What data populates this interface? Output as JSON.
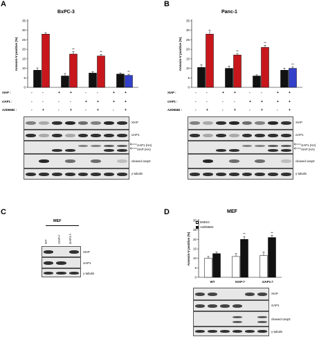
{
  "colors": {
    "black": "#111111",
    "red": "#c8171c",
    "blue": "#3340c9",
    "white": "#ffffff"
  },
  "panels": {
    "A": {
      "letter": "A",
      "title": "BxPC-3"
    },
    "B": {
      "letter": "B",
      "title": "Panc-1"
    },
    "C": {
      "letter": "C",
      "title": "MEF"
    },
    "D": {
      "letter": "D",
      "title": "MEF"
    }
  },
  "legend_D": {
    "dmso": "DMSO",
    "azd": "AZD5582"
  },
  "chart_data": [
    {
      "panel": "A",
      "type": "bar",
      "title": "BxPC-3",
      "ylabel": "Annexin-V positive (%)",
      "yticks": [
        0,
        5,
        10,
        15,
        20,
        25,
        30,
        35
      ],
      "ylim": [
        0,
        35
      ],
      "groups": [
        "1",
        "2",
        "3",
        "4"
      ],
      "series": [
        {
          "color": "#111111",
          "values": [
            9,
            6,
            7.5,
            7
          ],
          "errors": [
            1.2,
            1.3,
            0.8,
            0.6
          ]
        },
        {
          "color": [
            "#c8171c",
            "#c8171c",
            "#c8171c",
            "#3340c9"
          ],
          "values": [
            28,
            17.5,
            16.5,
            6.3
          ],
          "errors": [
            0.8,
            1.3,
            0.9,
            0.6
          ]
        }
      ],
      "significance": [
        "",
        "**",
        "**",
        "**"
      ]
    },
    {
      "panel": "B",
      "type": "bar",
      "title": "Panc-1",
      "ylabel": "Annexin-V positive (%)",
      "yticks": [
        0,
        5,
        10,
        15,
        20,
        25,
        30,
        35
      ],
      "ylim": [
        0,
        35
      ],
      "groups": [
        "1",
        "2",
        "3",
        "4"
      ],
      "series": [
        {
          "color": "#111111",
          "values": [
            10.5,
            10,
            6,
            9
          ],
          "errors": [
            1.5,
            1.2,
            0.6,
            1.1
          ]
        },
        {
          "color": [
            "#c8171c",
            "#c8171c",
            "#c8171c",
            "#3340c9"
          ],
          "values": [
            28,
            17,
            21,
            10
          ],
          "errors": [
            2,
            0.6,
            1.1,
            0.8
          ]
        }
      ],
      "significance": [
        "",
        "**",
        "**",
        "**"
      ]
    },
    {
      "panel": "D",
      "type": "bar",
      "title": "MEF",
      "ylabel": "Annexin-V positive (%)",
      "yticks": [
        0,
        5,
        10,
        15,
        20,
        25,
        30
      ],
      "ylim": [
        0,
        30
      ],
      "categories": [
        "WT",
        "XIAP-/-",
        "cIAP1-/-"
      ],
      "series": [
        {
          "name": "DMSO",
          "color": "#ffffff",
          "values": [
            10,
            11,
            11.5
          ],
          "errors": [
            1,
            1.5,
            1.8
          ]
        },
        {
          "name": "AZD5582",
          "color": "#111111",
          "values": [
            12.5,
            20,
            21
          ],
          "errors": [
            0.8,
            1.5,
            1.2
          ]
        }
      ],
      "significance": [
        "",
        "**",
        "**"
      ]
    }
  ],
  "treatments": {
    "rows": [
      "XIAP :",
      "cIAP1 :",
      "AZD5582 :"
    ],
    "A": [
      [
        "-",
        "-",
        "+",
        "+",
        "-",
        "-",
        "+",
        "+"
      ],
      [
        "-",
        "-",
        "-",
        "-",
        "+",
        "+",
        "+",
        "+"
      ],
      [
        "-",
        "+",
        "-",
        "+",
        "-",
        "+",
        "-",
        "+"
      ]
    ],
    "B": [
      [
        "-",
        "-",
        "+",
        "+",
        "-",
        "-",
        "+",
        "+"
      ],
      [
        "-",
        "-",
        "-",
        "-",
        "+",
        "+",
        "+",
        "+"
      ],
      [
        "-",
        "+",
        "-",
        "+",
        "-",
        "+",
        "-",
        "+"
      ]
    ]
  },
  "blots": {
    "A": [
      "XIAP",
      "cIAP1",
      "cIAP1 (HA)",
      "XIAP (HA)",
      "cleaved casp3",
      "γ-tubulin"
    ],
    "B": [
      "XIAP",
      "cIAP1",
      "cIAP1 (HA)",
      "XIAP (HA)",
      "cleaved casp3",
      "γ-tubulin"
    ],
    "C_lanes": [
      "WT",
      "XIAP-/-",
      "cIAP1-/-"
    ],
    "C": [
      "XIAP",
      "cIAP1",
      "γ-tubulin"
    ],
    "D_lanes": [
      "WT",
      "XIAP-/-",
      "cIAP1-/-"
    ],
    "D": [
      "XIAP",
      "cIAP1",
      "cleaved casp3",
      "γ-tubulin"
    ]
  }
}
